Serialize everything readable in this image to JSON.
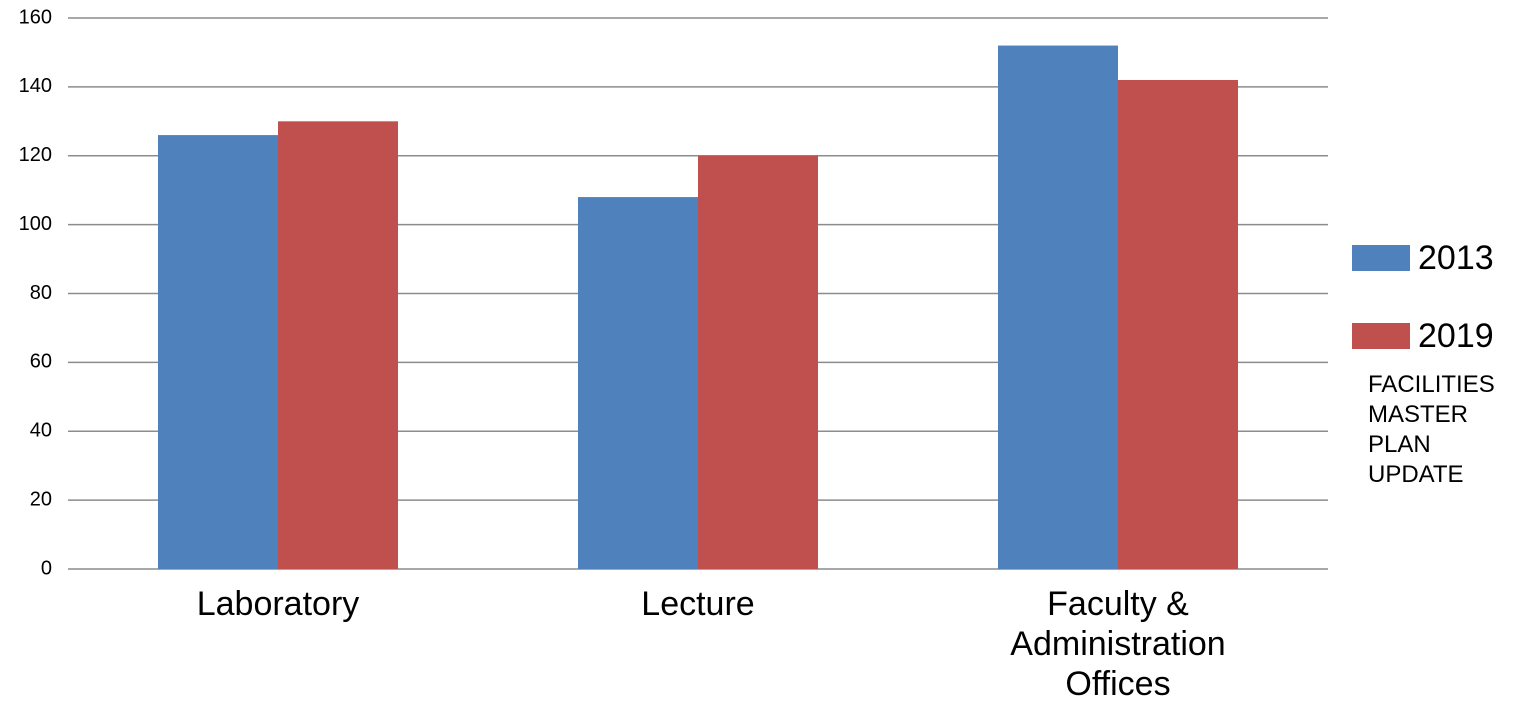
{
  "chart_data": {
    "type": "bar",
    "categories": [
      "Laboratory",
      "Lecture",
      "Faculty & Administration Offices"
    ],
    "series": [
      {
        "name": "2013",
        "color": "#4f81bd",
        "values": [
          126,
          108,
          152
        ]
      },
      {
        "name": "2019",
        "color": "#c0504d",
        "values": [
          130,
          120,
          142
        ]
      }
    ],
    "ylim": [
      0,
      160
    ],
    "yticks": [
      0,
      20,
      40,
      60,
      80,
      100,
      120,
      140,
      160
    ],
    "grid": true,
    "legend": "right",
    "note": "FACILITIES MASTER PLAN UPDATE"
  }
}
